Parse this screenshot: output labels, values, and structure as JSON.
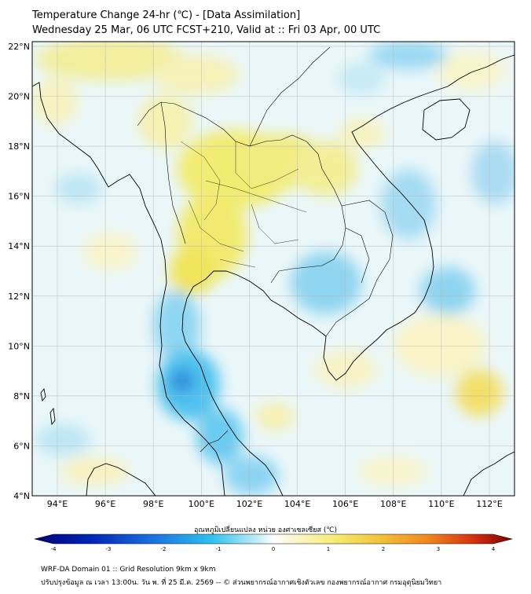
{
  "title": {
    "line1": "Temperature Change 24-hr (℃) - [Data Assimilation]",
    "line2": "Wednesday 25 Mar, 06 UTC FCST+210, Valid at :: Fri 03 Apr, 00 UTC"
  },
  "axes": {
    "lat_labels": [
      "22°N",
      "20°N",
      "18°N",
      "16°N",
      "14°N",
      "12°N",
      "10°N",
      "8°N",
      "6°N",
      "4°N"
    ],
    "lon_labels": [
      "94°E",
      "96°E",
      "98°E",
      "100°E",
      "102°E",
      "104°E",
      "106°E",
      "108°E",
      "110°E",
      "112°E"
    ]
  },
  "colorbar": {
    "label": "อุณหภูมิเปลี่ยนแปลง หน่วย องศาเซลเซียส (℃)",
    "ticks": [
      "-4",
      "-3",
      "-2",
      "-1",
      "0",
      "1",
      "2",
      "3",
      "4"
    ],
    "min": -4,
    "max": 4
  },
  "footer": {
    "line1": "WRF-DA Domain 01 :: Grid Resolution 9km x 9km",
    "line2": "ปรับปรุงข้อมูล ณ เวลา 13:00น. วัน พ. ที่ 25 มี.ค. 2569 -- © ส่วนพยากรณ์อากาศเชิงตัวเลข กองพยากรณ์อากาศ กรมอุตุนิยมวิทยา"
  },
  "colors": {
    "warm": "#f2ec6a",
    "cool": "#44c8ee",
    "cold": "#2a7fd6",
    "neutral": "#e9f7f8",
    "border": "#000000",
    "grid": "#b0b0b0"
  }
}
